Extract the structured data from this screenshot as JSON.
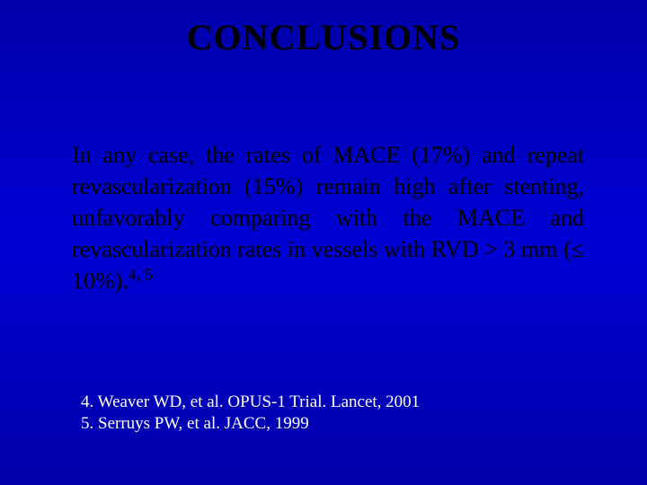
{
  "title": "CONCLUSIONS",
  "paragraph": "In any case, the rates of MACE (17%) and repeat revascularization (15%) remain high after stenting, unfavorably comparing with the MACE and revascularization rates in vessels with RVD > 3 mm (≤ 10%).",
  "superscript": "4, 5",
  "references": [
    "4. Weaver WD, et al. OPUS-1 Trial. Lancet, 2001",
    "5. Serruys PW, et al. JACC, 1999"
  ],
  "styling": {
    "background_gradient": [
      "#0000aa",
      "#0000d4",
      "#0000aa"
    ],
    "title_color": "#000000",
    "title_fontsize": 40,
    "title_weight": "bold",
    "body_color": "#000000",
    "body_fontsize": 26,
    "ref_color": "#ffffff",
    "ref_fontsize": 19,
    "font_family": "Times New Roman"
  }
}
